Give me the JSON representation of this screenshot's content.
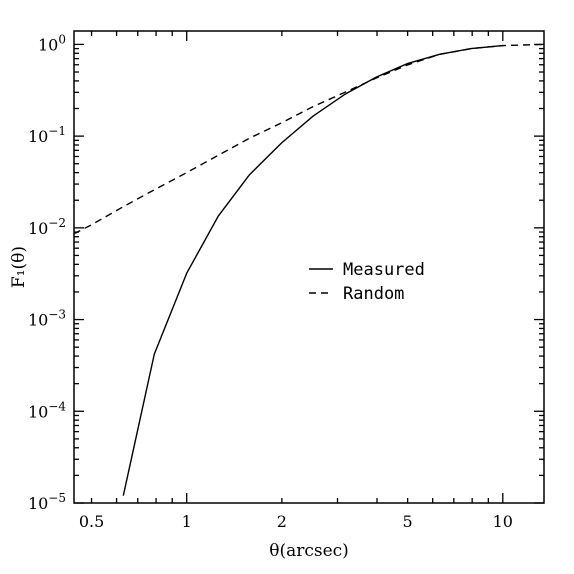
{
  "chart_data": {
    "type": "line",
    "x_scale": "log",
    "y_scale": "log",
    "xlim": [
      0.44,
      13.5
    ],
    "ylim": [
      1e-05,
      1.4
    ],
    "xlabel": "θ(arcsec)",
    "ylabel": "F₁(θ)",
    "x_ticks": [
      {
        "value": 0.5,
        "label": "0.5"
      },
      {
        "value": 1,
        "label": "1"
      },
      {
        "value": 2,
        "label": "2"
      },
      {
        "value": 5,
        "label": "5"
      },
      {
        "value": 10,
        "label": "10"
      }
    ],
    "y_ticks": [
      {
        "value": 1e-05,
        "base": "10",
        "exp": "−5"
      },
      {
        "value": 0.0001,
        "base": "10",
        "exp": "−4"
      },
      {
        "value": 0.001,
        "base": "10",
        "exp": "−3"
      },
      {
        "value": 0.01,
        "base": "10",
        "exp": "−2"
      },
      {
        "value": 0.1,
        "base": "10",
        "exp": "−1"
      },
      {
        "value": 1,
        "base": "10",
        "exp": "0"
      }
    ],
    "legend_position": "center-right",
    "grid": false,
    "series": [
      {
        "name": "Measured",
        "style": "solid",
        "x": [
          0.63,
          0.79,
          1.0,
          1.26,
          1.58,
          2.0,
          2.51,
          3.16,
          3.98,
          5.01,
          6.31,
          7.94,
          10.0
        ],
        "y": [
          1.2e-05,
          0.00042,
          0.0032,
          0.0135,
          0.038,
          0.085,
          0.165,
          0.285,
          0.44,
          0.62,
          0.78,
          0.9,
          0.97
        ]
      },
      {
        "name": "Random",
        "style": "dashed",
        "x": [
          0.44,
          0.5,
          0.63,
          0.79,
          1.0,
          1.26,
          1.58,
          2.0,
          2.51,
          3.16,
          3.98,
          5.01,
          6.31,
          7.94,
          10.0,
          13.5
        ],
        "y": [
          0.0086,
          0.0108,
          0.017,
          0.026,
          0.04,
          0.062,
          0.095,
          0.14,
          0.21,
          0.3,
          0.43,
          0.6,
          0.78,
          0.9,
          0.97,
          1.0
        ]
      }
    ]
  }
}
